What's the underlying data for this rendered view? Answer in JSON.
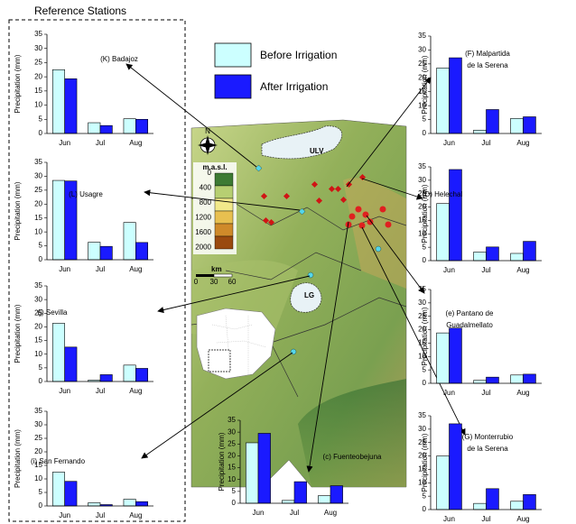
{
  "heading": "Reference Stations",
  "legend": [
    {
      "name": "Before Irrigation",
      "color": "#ccffff"
    },
    {
      "name": "After Irrigation",
      "color": "#1a1aff"
    }
  ],
  "map": {
    "reservoirs": [
      "ULV",
      "LG"
    ],
    "north": "N",
    "elevation_title": "m.a.s.l.",
    "elevation_labels": [
      "0",
      "400",
      "800",
      "1200",
      "1600",
      "2000"
    ],
    "scale_title": "km",
    "scale_labels": [
      "0",
      "30",
      "60"
    ]
  },
  "chart_data": [
    {
      "type": "bar",
      "title": [
        "(K) Badajoz"
      ],
      "ylabel": "Precipitation (mm)",
      "categories": [
        "Jun",
        "Jul",
        "Aug"
      ],
      "series": [
        {
          "values": [
            22.5,
            3.8,
            5.2
          ]
        },
        {
          "values": [
            19.3,
            2.8,
            5.0
          ]
        }
      ],
      "ylim": [
        0,
        35
      ],
      "yticks": [
        0,
        5,
        10,
        15,
        20,
        25,
        30,
        35
      ]
    },
    {
      "type": "bar",
      "title": [
        "(L) Usagre"
      ],
      "ylabel": "Precipitation (mm)",
      "categories": [
        "Jun",
        "Jul",
        "Aug"
      ],
      "series": [
        {
          "values": [
            28.5,
            6.3,
            13.4
          ]
        },
        {
          "values": [
            28.3,
            4.8,
            6.2
          ]
        }
      ],
      "ylim": [
        0,
        35
      ],
      "yticks": [
        0,
        5,
        10,
        15,
        20,
        25,
        30,
        35
      ]
    },
    {
      "type": "bar",
      "title": [
        "(j) Sevilla"
      ],
      "ylabel": "Precipitation (mm)",
      "categories": [
        "Jun",
        "Jul",
        "Aug"
      ],
      "series": [
        {
          "values": [
            21.3,
            0.5,
            6.0
          ]
        },
        {
          "values": [
            12.6,
            2.5,
            4.8
          ]
        }
      ],
      "ylim": [
        0,
        35
      ],
      "yticks": [
        0,
        5,
        10,
        15,
        20,
        25,
        30,
        35
      ]
    },
    {
      "type": "bar",
      "title": [
        "(i) San Fernando"
      ],
      "ylabel": "Precipitation (mm)",
      "categories": [
        "Jun",
        "Jul",
        "Aug"
      ],
      "series": [
        {
          "values": [
            12.5,
            1.2,
            2.5
          ]
        },
        {
          "values": [
            9.1,
            0.5,
            1.6
          ]
        }
      ],
      "ylim": [
        0,
        35
      ],
      "yticks": [
        0,
        5,
        10,
        15,
        20,
        25,
        30,
        35
      ]
    },
    {
      "type": "bar",
      "title": [
        "(c) Fuenteobejuna"
      ],
      "ylabel": "Precipitation (mm)",
      "categories": [
        "Jun",
        "Jul",
        "Aug"
      ],
      "series": [
        {
          "values": [
            25.5,
            1.2,
            3.2
          ]
        },
        {
          "values": [
            29.5,
            9.1,
            7.4
          ]
        }
      ],
      "ylim": [
        0,
        35
      ],
      "yticks": [
        0,
        5,
        10,
        15,
        20,
        25,
        30,
        35
      ]
    },
    {
      "type": "bar",
      "title": [
        "(F) Malpartida",
        "de la Serena"
      ],
      "ylabel": "Precipitation (mm)",
      "categories": [
        "Jun",
        "Jul",
        "Aug"
      ],
      "series": [
        {
          "values": [
            23.5,
            1.2,
            5.4
          ]
        },
        {
          "values": [
            27.2,
            8.6,
            6.0
          ]
        }
      ],
      "ylim": [
        0,
        35
      ],
      "yticks": [
        0,
        5,
        10,
        15,
        20,
        25,
        30,
        35
      ]
    },
    {
      "type": "bar",
      "title": [
        "(D) Helechal"
      ],
      "ylabel": "Precipitation (mm)",
      "categories": [
        "Jun",
        "Jul",
        "Aug"
      ],
      "series": [
        {
          "values": [
            21.3,
            3.2,
            2.7
          ]
        },
        {
          "values": [
            34.0,
            5.1,
            7.2
          ]
        }
      ],
      "ylim": [
        0,
        35
      ],
      "yticks": [
        0,
        5,
        10,
        15,
        20,
        25,
        30,
        35
      ]
    },
    {
      "type": "bar",
      "title": [
        "(e) Pantano de",
        "Guadalmellato"
      ],
      "ylabel": "Precipitation (mm)",
      "categories": [
        "Jun",
        "Jul",
        "Aug"
      ],
      "series": [
        {
          "values": [
            18.8,
            1.1,
            3.1
          ]
        },
        {
          "values": [
            20.6,
            2.3,
            3.4
          ]
        }
      ],
      "ylim": [
        0,
        35
      ],
      "yticks": [
        0,
        5,
        10,
        15,
        20,
        25,
        30,
        35
      ]
    },
    {
      "type": "bar",
      "title": [
        "(G) Monterrubio",
        "de la Serena"
      ],
      "ylabel": "Precipitation (mm)",
      "categories": [
        "Jun",
        "Jul",
        "Aug"
      ],
      "series": [
        {
          "values": [
            20.0,
            2.3,
            3.1
          ]
        },
        {
          "values": [
            32.0,
            7.8,
            5.6
          ]
        }
      ],
      "ylim": [
        0,
        35
      ],
      "yticks": [
        0,
        5,
        10,
        15,
        20,
        25,
        30,
        35
      ]
    }
  ]
}
